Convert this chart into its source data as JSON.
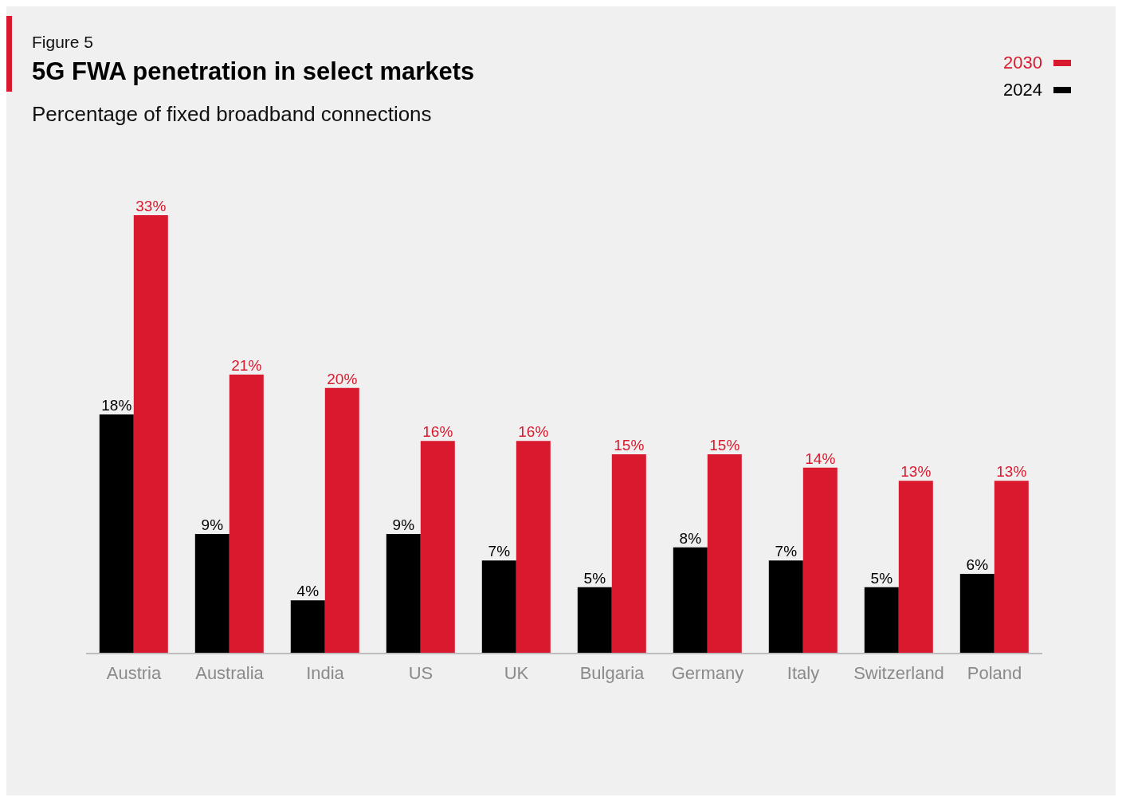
{
  "chart_data": {
    "type": "bar",
    "title": "5G FWA penetration in select markets",
    "subtitle": "Percentage of fixed broadband connections",
    "annotations": [
      "Figure 5"
    ],
    "categories": [
      "Austria",
      "Australia",
      "India",
      "US",
      "UK",
      "Bulgaria",
      "Germany",
      "Italy",
      "Switzerland",
      "Poland"
    ],
    "series": [
      {
        "name": "2024",
        "color": "#000000",
        "values": [
          18,
          9,
          4,
          9,
          7,
          5,
          8,
          7,
          5,
          6
        ],
        "value_labels": [
          "18%",
          "9%",
          "4%",
          "9%",
          "7%",
          "5%",
          "8%",
          "7%",
          "5%",
          "6%"
        ]
      },
      {
        "name": "2030",
        "color": "#d9192e",
        "values": [
          33,
          21,
          20,
          16,
          16,
          15,
          15,
          14,
          13,
          13
        ],
        "value_labels": [
          "33%",
          "21%",
          "20%",
          "16%",
          "16%",
          "15%",
          "15%",
          "14%",
          "13%",
          "13%"
        ]
      }
    ],
    "legend": "top right",
    "grid": false
  }
}
